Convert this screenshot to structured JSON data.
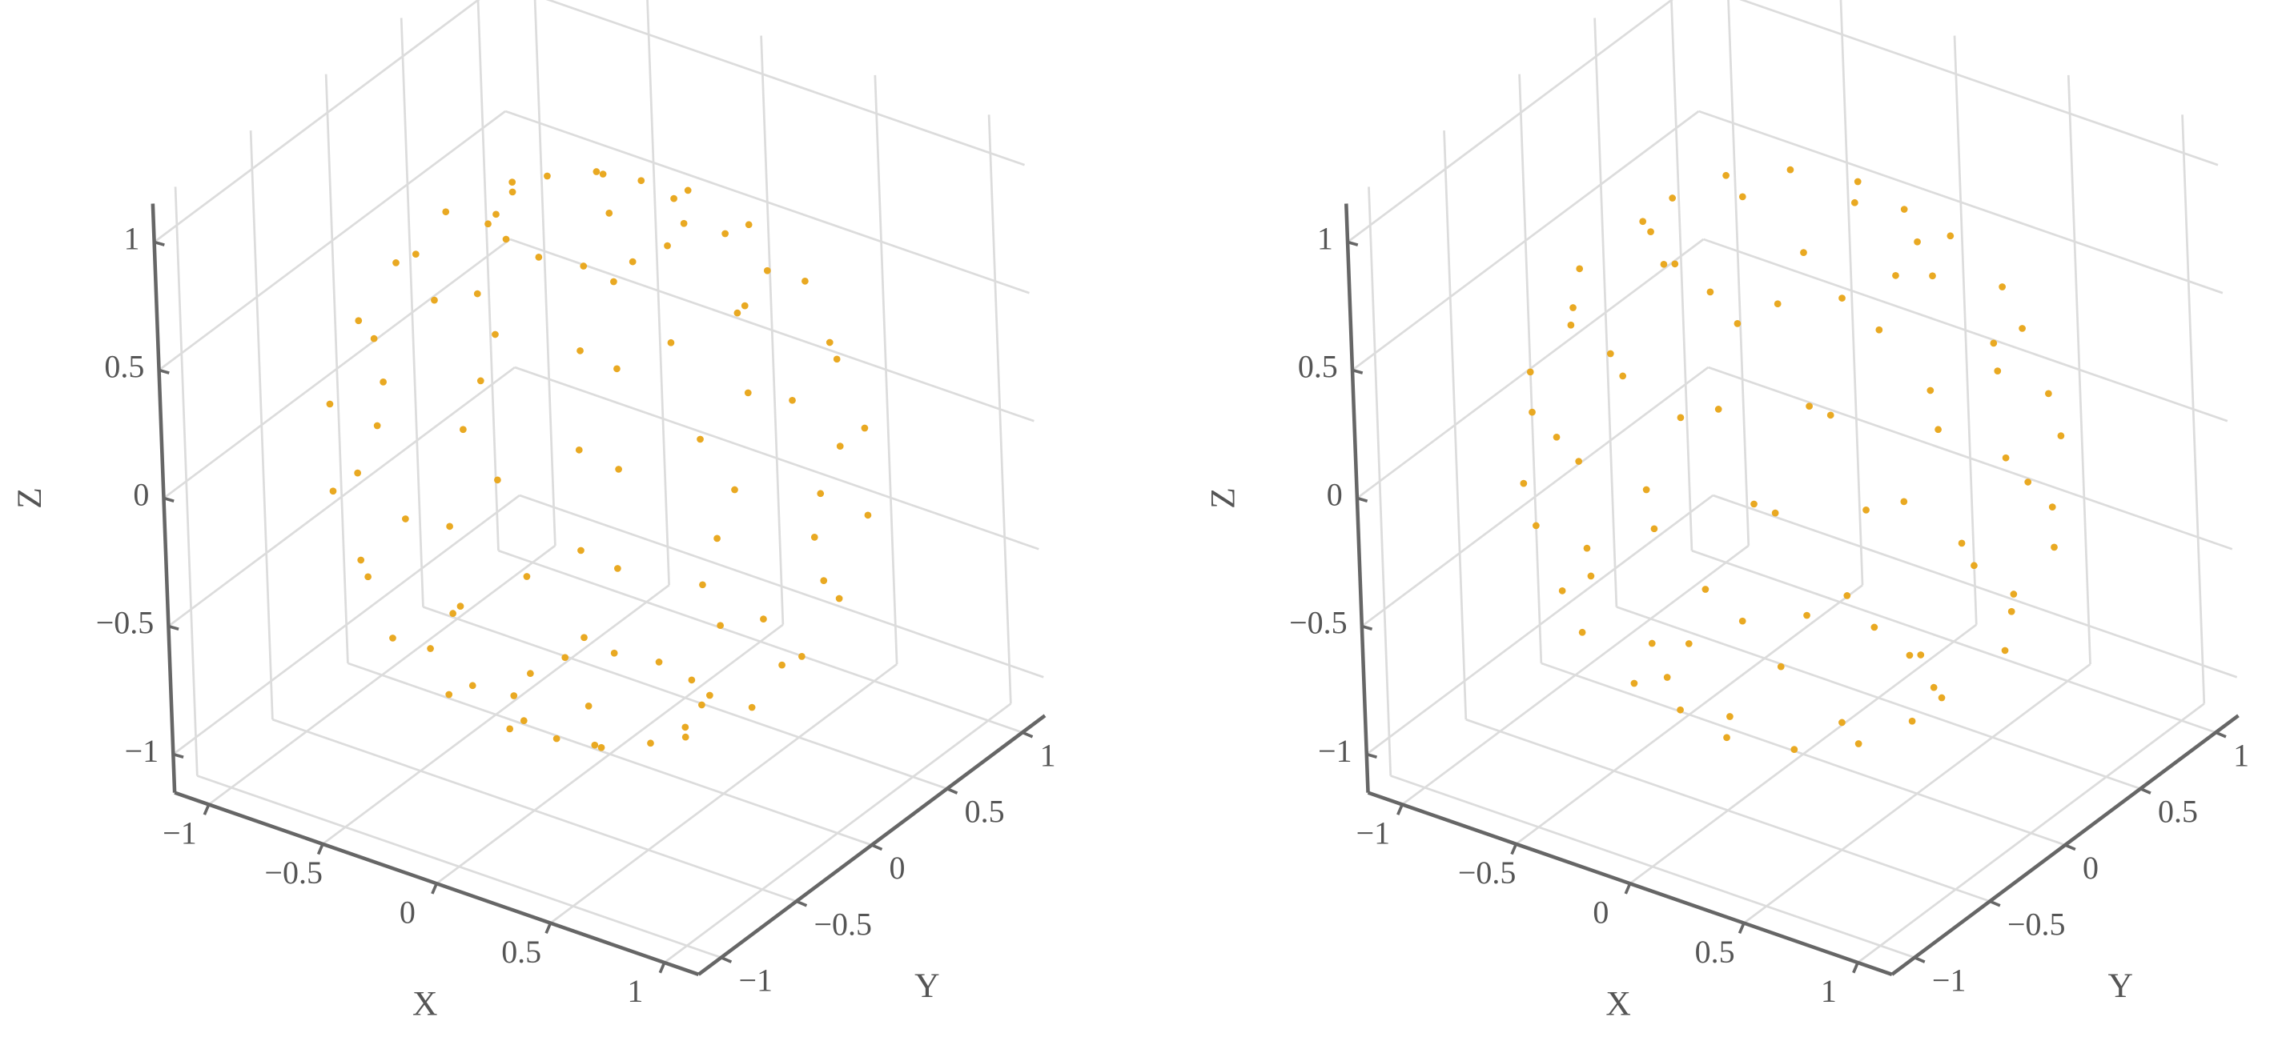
{
  "chart_data": [
    {
      "type": "scatter",
      "color": "#e9a922",
      "xlabel": "X",
      "ylabel": "Y",
      "zlabel": "Z",
      "xlim": [
        -1.15,
        1.15
      ],
      "ylim": [
        -1.15,
        1.15
      ],
      "zlim": [
        -1.15,
        1.15
      ],
      "xticks": [
        {
          "value": -1,
          "label": "−1"
        },
        {
          "value": -0.5,
          "label": "−0.5"
        },
        0,
        0.5,
        1
      ],
      "yticks": [
        {
          "value": -1,
          "label": "−1"
        },
        {
          "value": -0.5,
          "label": "−0.5"
        },
        0,
        0.5,
        1
      ],
      "zticks": [
        {
          "value": -1,
          "label": "−1"
        },
        {
          "value": -0.5,
          "label": "−0.5"
        },
        0,
        0.5,
        1
      ],
      "x": [
        0.34,
        0.3,
        0.17,
        0,
        -0.17,
        -0.3,
        -0.34,
        -0.3,
        -0.17,
        0,
        0.17,
        0.3,
        0.64,
        0.56,
        0.32,
        0,
        -0.32,
        -0.56,
        -0.64,
        -0.56,
        -0.32,
        0,
        0.32,
        0.56,
        0.87,
        0.75,
        0.43,
        0,
        -0.43,
        -0.75,
        -0.87,
        -0.75,
        -0.43,
        0,
        0.43,
        0.75,
        0.98,
        0.85,
        0.49,
        0,
        -0.49,
        -0.85,
        -0.98,
        -0.85,
        -0.49,
        0,
        0.49,
        0.85,
        0.98,
        0.85,
        0.49,
        0,
        -0.49,
        -0.85,
        -0.98,
        -0.85,
        -0.49,
        0,
        0.49,
        0.85,
        0.87,
        0.75,
        0.43,
        0,
        -0.43,
        -0.75,
        -0.87,
        -0.75,
        -0.43,
        0,
        0.43,
        0.75,
        0.64,
        0.56,
        0.32,
        0,
        -0.32,
        -0.56,
        -0.64,
        -0.56,
        -0.32,
        0,
        0.32,
        0.56,
        0.34,
        0.3,
        0.17,
        0,
        -0.17,
        -0.3,
        -0.34,
        -0.3,
        -0.17,
        0,
        0.17,
        0.3
      ],
      "y": [
        0,
        0.17,
        0.3,
        0.34,
        0.3,
        0.17,
        0,
        -0.17,
        -0.3,
        -0.34,
        -0.3,
        -0.17,
        0,
        0.32,
        0.56,
        0.64,
        0.56,
        0.32,
        0,
        -0.32,
        -0.56,
        -0.64,
        -0.56,
        -0.32,
        0,
        0.43,
        0.75,
        0.87,
        0.75,
        0.43,
        0,
        -0.43,
        -0.75,
        -0.87,
        -0.75,
        -0.43,
        0,
        0.49,
        0.85,
        0.98,
        0.85,
        0.49,
        0,
        -0.49,
        -0.85,
        -0.98,
        -0.85,
        -0.49,
        0,
        0.49,
        0.85,
        0.98,
        0.85,
        0.49,
        0,
        -0.49,
        -0.85,
        -0.98,
        -0.85,
        -0.49,
        0,
        0.43,
        0.75,
        0.87,
        0.75,
        0.43,
        0,
        -0.43,
        -0.75,
        -0.87,
        -0.75,
        -0.43,
        0,
        0.32,
        0.56,
        0.64,
        0.56,
        0.32,
        0,
        -0.32,
        -0.56,
        -0.64,
        -0.56,
        -0.32,
        0,
        0.17,
        0.3,
        0.34,
        0.3,
        0.17,
        0,
        -0.17,
        -0.3,
        -0.34,
        -0.3,
        -0.17
      ],
      "z": [
        0.94,
        0.94,
        0.94,
        0.94,
        0.94,
        0.94,
        0.94,
        0.94,
        0.94,
        0.94,
        0.94,
        0.94,
        0.77,
        0.77,
        0.77,
        0.77,
        0.77,
        0.77,
        0.77,
        0.77,
        0.77,
        0.77,
        0.77,
        0.77,
        0.5,
        0.5,
        0.5,
        0.5,
        0.5,
        0.5,
        0.5,
        0.5,
        0.5,
        0.5,
        0.5,
        0.5,
        0.17,
        0.17,
        0.17,
        0.17,
        0.17,
        0.17,
        0.17,
        0.17,
        0.17,
        0.17,
        0.17,
        0.17,
        -0.17,
        -0.17,
        -0.17,
        -0.17,
        -0.17,
        -0.17,
        -0.17,
        -0.17,
        -0.17,
        -0.17,
        -0.17,
        -0.17,
        -0.5,
        -0.5,
        -0.5,
        -0.5,
        -0.5,
        -0.5,
        -0.5,
        -0.5,
        -0.5,
        -0.5,
        -0.5,
        -0.5,
        -0.77,
        -0.77,
        -0.77,
        -0.77,
        -0.77,
        -0.77,
        -0.77,
        -0.77,
        -0.77,
        -0.77,
        -0.77,
        -0.77,
        -0.94,
        -0.94,
        -0.94,
        -0.94,
        -0.94,
        -0.94,
        -0.94,
        -0.94,
        -0.94,
        -0.94,
        -0.94,
        -0.94
      ]
    },
    {
      "type": "scatter",
      "color": "#e9a922",
      "xlabel": "X",
      "ylabel": "Y",
      "zlabel": "Z",
      "xlim": [
        -1.15,
        1.15
      ],
      "ylim": [
        -1.15,
        1.15
      ],
      "zlim": [
        -1.15,
        1.15
      ],
      "xticks": [
        {
          "value": -1,
          "label": "−1"
        },
        {
          "value": -0.5,
          "label": "−0.5"
        },
        0,
        0.5,
        1
      ],
      "yticks": [
        {
          "value": -1,
          "label": "−1"
        },
        {
          "value": -0.5,
          "label": "−0.5"
        },
        0,
        0.5,
        1
      ],
      "zticks": [
        {
          "value": -1,
          "label": "−1"
        },
        {
          "value": -0.5,
          "label": "−0.5"
        },
        0,
        0.5,
        1
      ],
      "x": [
        0.49,
        0.42,
        0.25,
        0,
        -0.25,
        -0.42,
        -0.49,
        -0.42,
        -0.25,
        0,
        0.25,
        0.42,
        0.77,
        0.57,
        0.21,
        -0.21,
        -0.57,
        -0.77,
        -0.77,
        -0.57,
        -0.21,
        0.21,
        0.57,
        0.77,
        0.95,
        0.82,
        0.48,
        0,
        -0.48,
        -0.82,
        -0.95,
        -0.82,
        -0.48,
        0,
        0.48,
        0.82,
        0.97,
        0.71,
        0.26,
        -0.26,
        -0.71,
        -0.97,
        -0.97,
        -0.71,
        -0.26,
        0.26,
        0.71,
        0.97,
        0.95,
        0.82,
        0.48,
        0,
        -0.48,
        -0.82,
        -0.95,
        -0.82,
        -0.48,
        0,
        0.48,
        0.82,
        0.77,
        0.57,
        0.21,
        -0.21,
        -0.57,
        -0.77,
        -0.77,
        -0.57,
        -0.21,
        0.21,
        0.57,
        0.77,
        0.49,
        0.42,
        0.25,
        0,
        -0.25,
        -0.42,
        -0.49,
        -0.42,
        -0.25,
        0,
        0.25,
        0.42
      ],
      "y": [
        0,
        0.25,
        0.42,
        0.49,
        0.42,
        0.25,
        0,
        -0.25,
        -0.42,
        -0.49,
        -0.42,
        -0.25,
        0.21,
        0.57,
        0.77,
        0.77,
        0.57,
        0.21,
        -0.21,
        -0.57,
        -0.77,
        -0.77,
        -0.57,
        -0.21,
        0,
        0.48,
        0.82,
        0.95,
        0.82,
        0.48,
        0,
        -0.48,
        -0.82,
        -0.95,
        -0.82,
        -0.48,
        0.26,
        0.71,
        0.97,
        0.97,
        0.71,
        0.26,
        -0.26,
        -0.71,
        -0.97,
        -0.97,
        -0.71,
        -0.26,
        0,
        0.48,
        0.82,
        0.95,
        0.82,
        0.48,
        0,
        -0.48,
        -0.82,
        -0.95,
        -0.82,
        -0.48,
        0.21,
        0.57,
        0.77,
        0.77,
        0.57,
        0.21,
        -0.21,
        -0.57,
        -0.77,
        -0.77,
        -0.57,
        -0.21,
        0,
        0.25,
        0.42,
        0.49,
        0.42,
        0.25,
        0,
        -0.25,
        -0.42,
        -0.49,
        -0.42,
        -0.25
      ],
      "z": [
        0.87,
        0.87,
        0.87,
        0.87,
        0.87,
        0.87,
        0.87,
        0.87,
        0.87,
        0.87,
        0.87,
        0.87,
        0.6,
        0.6,
        0.6,
        0.6,
        0.6,
        0.6,
        0.6,
        0.6,
        0.6,
        0.6,
        0.6,
        0.6,
        0.3,
        0.3,
        0.3,
        0.3,
        0.3,
        0.3,
        0.3,
        0.3,
        0.3,
        0.3,
        0.3,
        0.3,
        0,
        0,
        0,
        0,
        0,
        0,
        0,
        0,
        0,
        0,
        0,
        0,
        -0.3,
        -0.3,
        -0.3,
        -0.3,
        -0.3,
        -0.3,
        -0.3,
        -0.3,
        -0.3,
        -0.3,
        -0.3,
        -0.3,
        -0.6,
        -0.6,
        -0.6,
        -0.6,
        -0.6,
        -0.6,
        -0.6,
        -0.6,
        -0.6,
        -0.6,
        -0.6,
        -0.6,
        -0.87,
        -0.87,
        -0.87,
        -0.87,
        -0.87,
        -0.87,
        -0.87,
        -0.87,
        -0.87,
        -0.87,
        -0.87,
        -0.87
      ]
    }
  ]
}
